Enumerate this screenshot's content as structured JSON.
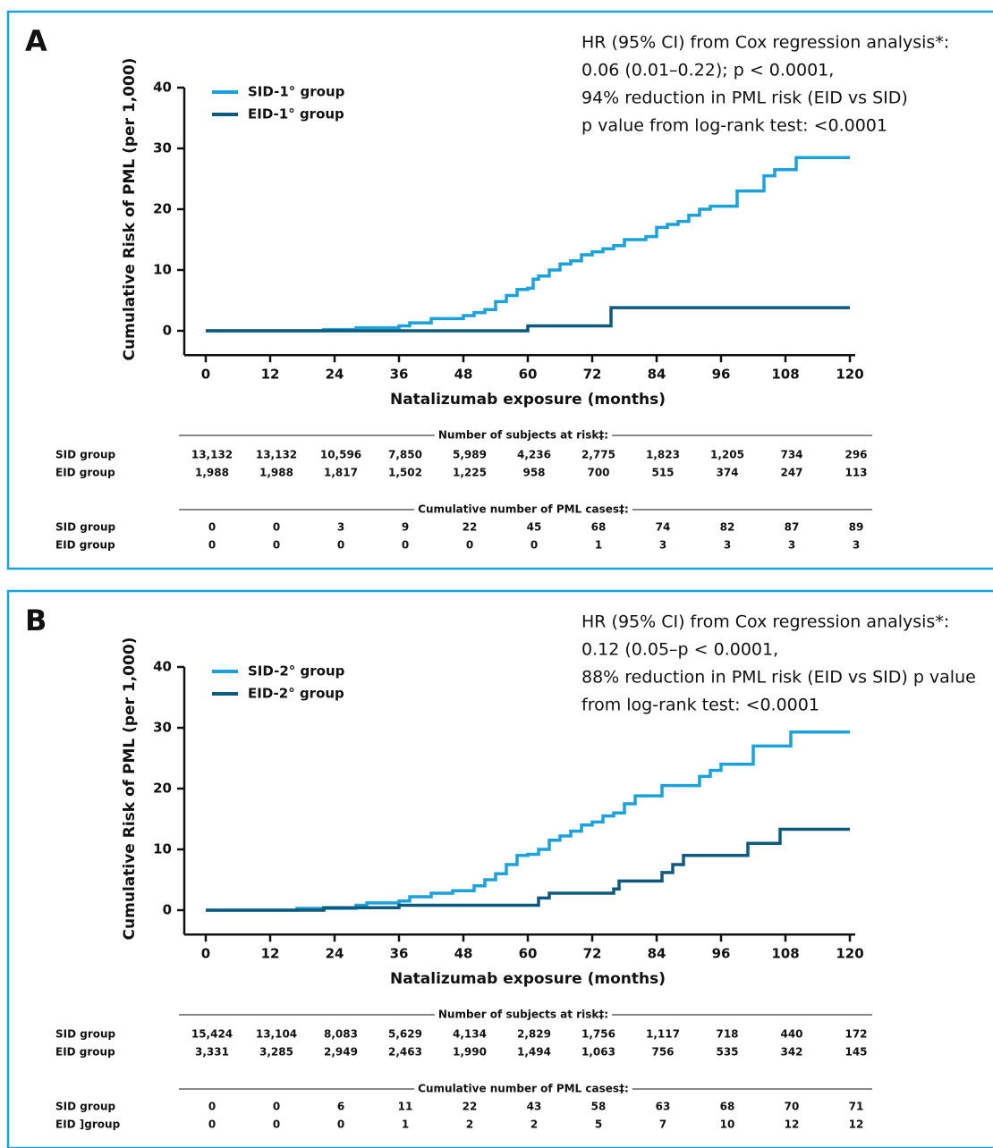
{
  "chart_data": [
    {
      "type": "step",
      "panel_label": "A",
      "annotation": [
        "HR (95% CI) from Cox regression analysis*:",
        "0.06 (0.01–0.22); p  < 0.0001,",
        "94% reduction in PML risk (EID vs SID)",
        "p value from log-rank test: <0.0001"
      ],
      "xlabel": "Natalizumab exposure (months)",
      "ylabel": "Cumulative Risk of PML (per 1,000)",
      "xlim": [
        -4,
        121
      ],
      "ylim": [
        -4,
        40
      ],
      "xticks": [
        0,
        12,
        24,
        36,
        48,
        60,
        72,
        84,
        96,
        108,
        120
      ],
      "yticks": [
        0,
        10,
        20,
        30,
        40
      ],
      "series": [
        {
          "name": "SID-1° group",
          "color": "#1ba1dc",
          "x": [
            0,
            22,
            28,
            36,
            38,
            42,
            48,
            50,
            52,
            54,
            56,
            58,
            60,
            61,
            62,
            64,
            66,
            68,
            70,
            72,
            74,
            76,
            78,
            82,
            84,
            86,
            88,
            90,
            92,
            94,
            99,
            104,
            106,
            110,
            120
          ],
          "values": [
            0,
            0.2,
            0.5,
            0.8,
            1.3,
            2,
            2.5,
            3,
            3.5,
            4.8,
            5.8,
            6.8,
            7,
            8.5,
            9,
            10,
            11,
            11.5,
            12.5,
            13,
            13.5,
            14,
            15,
            15.5,
            17,
            17.5,
            18,
            19,
            20,
            20.5,
            23,
            25.5,
            26.5,
            28.5,
            28.5
          ]
        },
        {
          "name": "EID-1° group",
          "color": "#0e5a7e",
          "x": [
            0,
            60,
            75.5,
            120
          ],
          "values": [
            0,
            0.8,
            3.8,
            3.8
          ]
        }
      ],
      "tables": [
        {
          "title": "Number of subjects at risk‡:",
          "rows": [
            {
              "label": "SID group",
              "values": [
                "13,132",
                "13,132",
                "10,596",
                "7,850",
                "5,989",
                "4,236",
                "2,775",
                "1,823",
                "1,205",
                "734",
                "296"
              ]
            },
            {
              "label": "EID group",
              "values": [
                "1,988",
                "1,988",
                "1,817",
                "1,502",
                "1,225",
                "958",
                "700",
                "515",
                "374",
                "247",
                "113"
              ]
            }
          ]
        },
        {
          "title": "Cumulative number of PML cases‡:",
          "rows": [
            {
              "label": "SID group",
              "values": [
                "0",
                "0",
                "3",
                "9",
                "22",
                "45",
                "68",
                "74",
                "82",
                "87",
                "89"
              ]
            },
            {
              "label": "EID group",
              "values": [
                "0",
                "0",
                "0",
                "0",
                "0",
                "0",
                "1",
                "3",
                "3",
                "3",
                "3"
              ]
            }
          ]
        }
      ]
    },
    {
      "type": "step",
      "panel_label": "B",
      "annotation": [
        "HR (95% CI) from Cox regression analysis*:",
        "0.12 (0.05–p  < 0.0001,",
        "88% reduction in PML risk (EID vs SID) p value",
        "from log-rank test: <0.0001"
      ],
      "xlabel": "Natalizumab exposure (months)",
      "ylabel": "Cumulative Risk of PML (per 1,000)",
      "xlim": [
        -4,
        121
      ],
      "ylim": [
        -4,
        40
      ],
      "xticks": [
        0,
        12,
        24,
        36,
        48,
        60,
        72,
        84,
        96,
        108,
        120
      ],
      "yticks": [
        0,
        10,
        20,
        30,
        40
      ],
      "series": [
        {
          "name": "SID-2° group",
          "color": "#1ba1dc",
          "x": [
            0,
            17,
            28,
            30,
            36,
            38,
            42,
            46,
            50,
            52,
            54,
            56,
            58,
            60,
            62,
            64,
            66,
            68,
            70,
            72,
            74,
            76,
            78,
            80,
            85,
            92,
            94,
            96,
            102,
            109,
            120
          ],
          "values": [
            0,
            0.3,
            0.8,
            1.2,
            1.5,
            2.2,
            2.8,
            3.2,
            4,
            5,
            6,
            7.5,
            9,
            9.2,
            10,
            11.5,
            12.2,
            13,
            14,
            14.5,
            15.5,
            16,
            17.5,
            18.8,
            20.5,
            22,
            23,
            24,
            27,
            29.3,
            29.3
          ]
        },
        {
          "name": "EID-2° group",
          "color": "#0e5a7e",
          "x": [
            0,
            22,
            36,
            62,
            64,
            76,
            77,
            85,
            87,
            89,
            101,
            107,
            120
          ],
          "values": [
            0,
            0.4,
            0.8,
            2,
            2.8,
            3.5,
            4.8,
            6.2,
            7.5,
            9,
            11,
            13.3,
            13.3
          ]
        }
      ],
      "tables": [
        {
          "title": "Number of subjects at risk‡:",
          "rows": [
            {
              "label": "SID group",
              "values": [
                "15,424",
                "13,104",
                "8,083",
                "5,629",
                "4,134",
                "2,829",
                "1,756",
                "1,117",
                "718",
                "440",
                "172"
              ]
            },
            {
              "label": "EID group",
              "values": [
                "3,331",
                "3,285",
                "2,949",
                "2,463",
                "1,990",
                "1,494",
                "1,063",
                "756",
                "535",
                "342",
                "145"
              ]
            }
          ]
        },
        {
          "title": "Cumulative number of PML cases‡:",
          "rows": [
            {
              "label": "SID group",
              "values": [
                "0",
                "0",
                "6",
                "11",
                "22",
                "43",
                "58",
                "63",
                "68",
                "70",
                "71"
              ]
            },
            {
              "label": "EID ]group",
              "values": [
                "0",
                "0",
                "0",
                "1",
                "2",
                "2",
                "5",
                "7",
                "10",
                "12",
                "12"
              ]
            }
          ]
        }
      ]
    }
  ]
}
